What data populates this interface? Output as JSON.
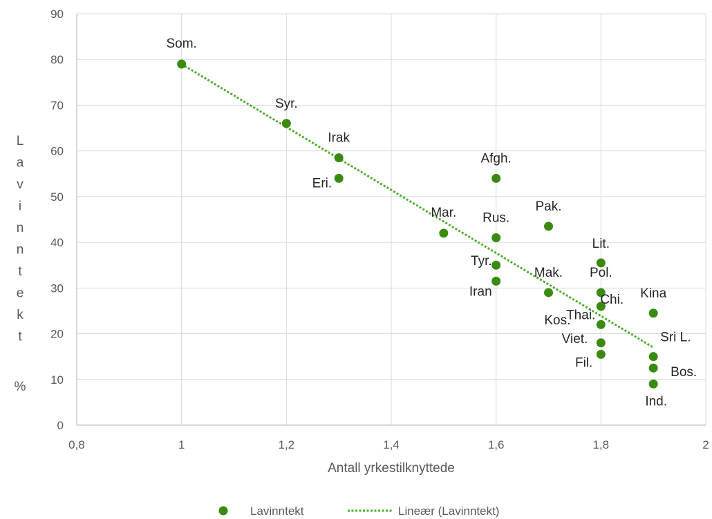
{
  "chart_data": {
    "type": "scatter",
    "xlabel": "Antall yrkestilknyttede",
    "ylabel": "Lavinntekt",
    "ylabel_unit": "%",
    "xlim": [
      0.8,
      2.0
    ],
    "ylim": [
      0,
      90
    ],
    "x_ticks": [
      0.8,
      1.0,
      1.2,
      1.4,
      1.6,
      1.8,
      2.0
    ],
    "x_tick_labels": [
      "0,8",
      "1",
      "1,2",
      "1,4",
      "1,6",
      "1,8",
      "2"
    ],
    "y_ticks": [
      0,
      10,
      20,
      30,
      40,
      50,
      60,
      70,
      80,
      90
    ],
    "y_tick_labels": [
      "0",
      "10",
      "20",
      "30",
      "40",
      "50",
      "60",
      "70",
      "80",
      "90"
    ],
    "grid": true,
    "legend_position": "bottom",
    "series": [
      {
        "name": "Lavinntekt",
        "color": "#3a8a0f",
        "points": [
          {
            "label": "Som.",
            "x": 1.0,
            "y": 79
          },
          {
            "label": "Syr.",
            "x": 1.2,
            "y": 66
          },
          {
            "label": "Irak",
            "x": 1.3,
            "y": 58.5
          },
          {
            "label": "Eri.",
            "x": 1.3,
            "y": 54
          },
          {
            "label": "Mar.",
            "x": 1.5,
            "y": 42
          },
          {
            "label": "Afgh.",
            "x": 1.6,
            "y": 54
          },
          {
            "label": "Rus.",
            "x": 1.6,
            "y": 41
          },
          {
            "label": "Tyr.",
            "x": 1.6,
            "y": 35
          },
          {
            "label": "Iran",
            "x": 1.6,
            "y": 31.5
          },
          {
            "label": "Pak.",
            "x": 1.7,
            "y": 43.5
          },
          {
            "label": "Mak.",
            "x": 1.7,
            "y": 29
          },
          {
            "label": "Kos.",
            "x": 1.8,
            "y": 26
          },
          {
            "label": "Lit.",
            "x": 1.8,
            "y": 35.5
          },
          {
            "label": "Pol.",
            "x": 1.8,
            "y": 29
          },
          {
            "label": "Chi.",
            "x": 1.8,
            "y": 26
          },
          {
            "label": "Thai.",
            "x": 1.8,
            "y": 22
          },
          {
            "label": "Viet.",
            "x": 1.8,
            "y": 18
          },
          {
            "label": "Fil.",
            "x": 1.8,
            "y": 15.5
          },
          {
            "label": "Kina",
            "x": 1.9,
            "y": 24.5
          },
          {
            "label": "Sri L.",
            "x": 1.9,
            "y": 15
          },
          {
            "label": "Bos.",
            "x": 1.9,
            "y": 12.5
          },
          {
            "label": "Ind.",
            "x": 1.9,
            "y": 9
          }
        ]
      },
      {
        "name": "Lineær (Lavinntekt)",
        "type": "trendline",
        "color": "#4caf2a",
        "x": [
          1.0,
          1.9
        ],
        "y": [
          79,
          17
        ]
      }
    ]
  }
}
